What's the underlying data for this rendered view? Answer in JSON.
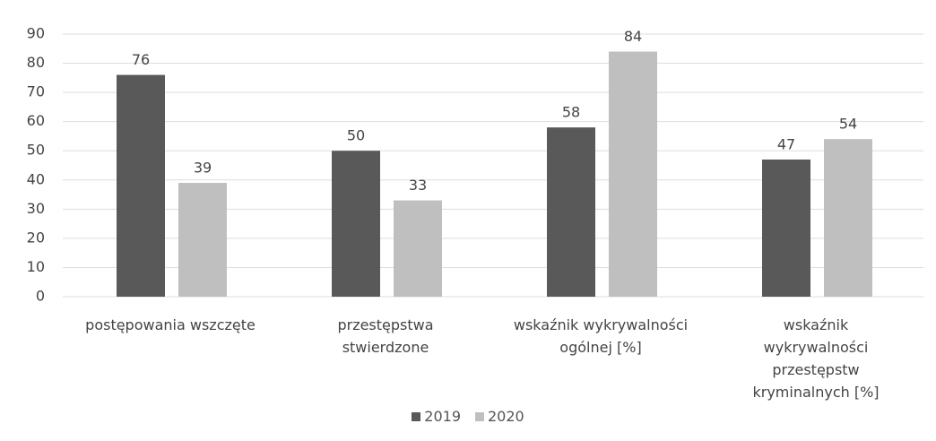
{
  "chart_data": {
    "type": "bar",
    "categories": [
      "postępowania wszczęte",
      "przestępstwa stwierdzone",
      "wskaźnik wykrywalności ogólnej [%]",
      "wskaźnik wykrywalności przestępstw kryminalnych [%]"
    ],
    "series": [
      {
        "name": "2019",
        "color": "#595959",
        "values": [
          76,
          50,
          58,
          47
        ]
      },
      {
        "name": "2020",
        "color": "#bfbfbf",
        "values": [
          39,
          33,
          84,
          54
        ]
      }
    ],
    "ylim": [
      0,
      90
    ],
    "yticks": [
      0,
      10,
      20,
      30,
      40,
      50,
      60,
      70,
      80,
      90
    ],
    "grid": true,
    "legend": "bottom"
  }
}
